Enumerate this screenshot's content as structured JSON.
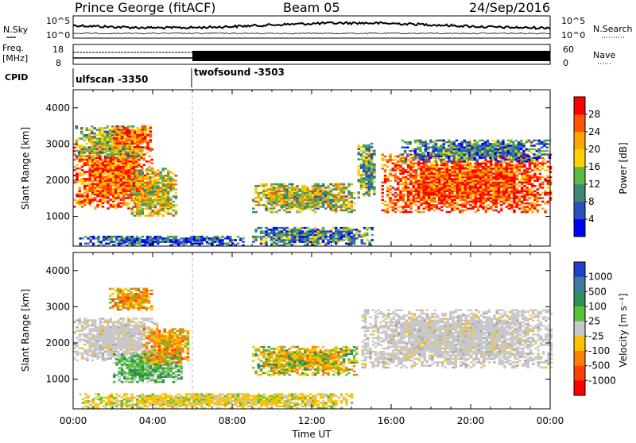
{
  "header": {
    "station": "Prince George (fitACF)",
    "beam": "Beam 05",
    "date": "24/Sep/2016"
  },
  "top_panels": {
    "nsky_label": "N.Sky",
    "nsky_ticks": [
      "10^5",
      "10^0"
    ],
    "nsearch_label": "N.Search",
    "nsearch_ticks": [
      "10^5",
      "10^0"
    ],
    "freq_label_line1": "Freq.",
    "freq_label_line2": "[MHz]",
    "freq_ticks": [
      "18",
      "8"
    ],
    "nave_label": "Nave",
    "nave_ticks": [
      "60",
      "0"
    ],
    "cpid_label": "CPID",
    "cpid_segments": [
      {
        "name": "ulfscan -3350",
        "start_h": 0,
        "end_h": 6
      },
      {
        "name": "twofsound -3503",
        "start_h": 6,
        "end_h": 24
      }
    ]
  },
  "chart_data": [
    {
      "type": "heatmap",
      "quantity": "Power",
      "xlabel": "Time UT",
      "ylabel": "Slant Range [km]",
      "x_range_hours": [
        0,
        24
      ],
      "x_ticks": [
        "00:00",
        "04:00",
        "08:00",
        "12:00",
        "16:00",
        "20:00",
        "00:00"
      ],
      "ylim": [
        180,
        4500
      ],
      "y_ticks": [
        1000,
        2000,
        3000,
        4000
      ],
      "colorbar_label": "Power [dB]",
      "colorbar_ticks": [
        "4",
        "8",
        "12",
        "16",
        "20",
        "24",
        "28"
      ],
      "colorbar_colors": [
        "#0000ff",
        "#2a4fc0",
        "#3d8a73",
        "#5fb845",
        "#ffd200",
        "#ffa500",
        "#ff5500",
        "#ff0000"
      ],
      "regions": [
        {
          "t0": 0.0,
          "t1": 3.9,
          "r0": 1200,
          "r1": 2900,
          "level": 0.8
        },
        {
          "t0": 0.1,
          "t1": 3.6,
          "r0": 2600,
          "r1": 3500,
          "level": 0.45
        },
        {
          "t0": 2.0,
          "t1": 3.9,
          "r0": 2800,
          "r1": 3500,
          "level": 0.75
        },
        {
          "t0": 2.9,
          "t1": 5.2,
          "r0": 1000,
          "r1": 2300,
          "level": 0.55
        },
        {
          "t0": 0.3,
          "t1": 8.5,
          "r0": 180,
          "r1": 450,
          "level": 0.2
        },
        {
          "t0": 9.0,
          "t1": 14.2,
          "r0": 1100,
          "r1": 1900,
          "level": 0.5
        },
        {
          "t0": 14.3,
          "t1": 15.2,
          "r0": 1500,
          "r1": 3000,
          "level": 0.4
        },
        {
          "t0": 15.5,
          "t1": 24.0,
          "r0": 1100,
          "r1": 2700,
          "level": 0.85
        },
        {
          "t0": 16.5,
          "t1": 24.0,
          "r0": 2500,
          "r1": 3100,
          "level": 0.3
        },
        {
          "t0": 9.0,
          "t1": 15.0,
          "r0": 180,
          "r1": 700,
          "level": 0.3
        }
      ]
    },
    {
      "type": "heatmap",
      "quantity": "Velocity",
      "xlabel": "Time UT",
      "ylabel": "Slant Range [km]",
      "x_range_hours": [
        0,
        24
      ],
      "x_ticks": [
        "00:00",
        "04:00",
        "08:00",
        "12:00",
        "16:00",
        "20:00",
        "00:00"
      ],
      "ylim": [
        180,
        4500
      ],
      "y_ticks": [
        1000,
        2000,
        3000,
        4000
      ],
      "colorbar_label": "Velocity [m s⁻¹]",
      "colorbar_ticks": [
        "1000",
        "500",
        "100",
        "25",
        "-25",
        "-100",
        "-500",
        "-1000"
      ],
      "colorbar_colors": [
        "#2040c8",
        "#3f7aa0",
        "#2f8f55",
        "#58c23a",
        "#c8c8c8",
        "#ffc000",
        "#ff8000",
        "#ff4000",
        "#ff0000"
      ],
      "regions": [
        {
          "t0": 0.0,
          "t1": 4.2,
          "r0": 1500,
          "r1": 2700,
          "color": "ground"
        },
        {
          "t0": 1.8,
          "t1": 3.9,
          "r0": 2900,
          "r1": 3500,
          "color": "neg"
        },
        {
          "t0": 2.0,
          "t1": 5.5,
          "r0": 900,
          "r1": 1700,
          "color": "pos"
        },
        {
          "t0": 3.5,
          "t1": 5.8,
          "r0": 1400,
          "r1": 2400,
          "color": "neg"
        },
        {
          "t0": 9.0,
          "t1": 14.3,
          "r0": 1100,
          "r1": 1900,
          "color": "mixed"
        },
        {
          "t0": 14.5,
          "t1": 24.0,
          "r0": 1300,
          "r1": 2900,
          "color": "ground"
        },
        {
          "t0": 0.3,
          "t1": 14.0,
          "r0": 180,
          "r1": 600,
          "color": "lowneg"
        }
      ]
    }
  ]
}
